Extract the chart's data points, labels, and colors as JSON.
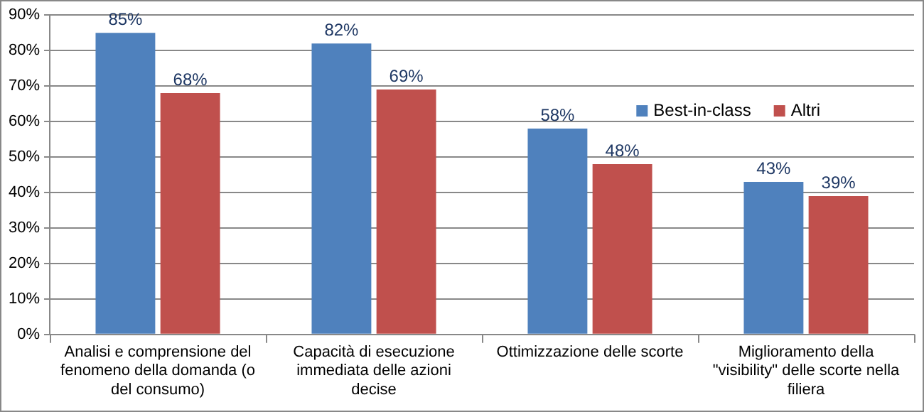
{
  "chart_data": {
    "type": "bar",
    "categories": [
      "Analisi e comprensione del fenomeno della domanda (o del consumo)",
      "Capacità di esecuzione immediata delle azioni decise",
      "Ottimizzazione delle scorte",
      "Miglioramento della \"visibility\" delle scorte nella filiera"
    ],
    "series": [
      {
        "name": "Best-in-class",
        "color": "#4f81bd",
        "values": [
          85,
          82,
          58,
          43
        ],
        "value_labels": [
          "85%",
          "82%",
          "58%",
          "43%"
        ]
      },
      {
        "name": "Altri",
        "color": "#c0504d",
        "values": [
          68,
          69,
          48,
          39
        ],
        "value_labels": [
          "68%",
          "69%",
          "48%",
          "39%"
        ]
      }
    ],
    "ylim": [
      0,
      90
    ],
    "yticks": [
      {
        "value": 0,
        "label": "0%"
      },
      {
        "value": 10,
        "label": "10%"
      },
      {
        "value": 20,
        "label": "20%"
      },
      {
        "value": 30,
        "label": "30%"
      },
      {
        "value": 40,
        "label": "40%"
      },
      {
        "value": 50,
        "label": "50%"
      },
      {
        "value": 60,
        "label": "60%"
      },
      {
        "value": 70,
        "label": "70%"
      },
      {
        "value": 80,
        "label": "80%"
      },
      {
        "value": 90,
        "label": "90%"
      }
    ],
    "grid": "y",
    "legend": "right"
  }
}
